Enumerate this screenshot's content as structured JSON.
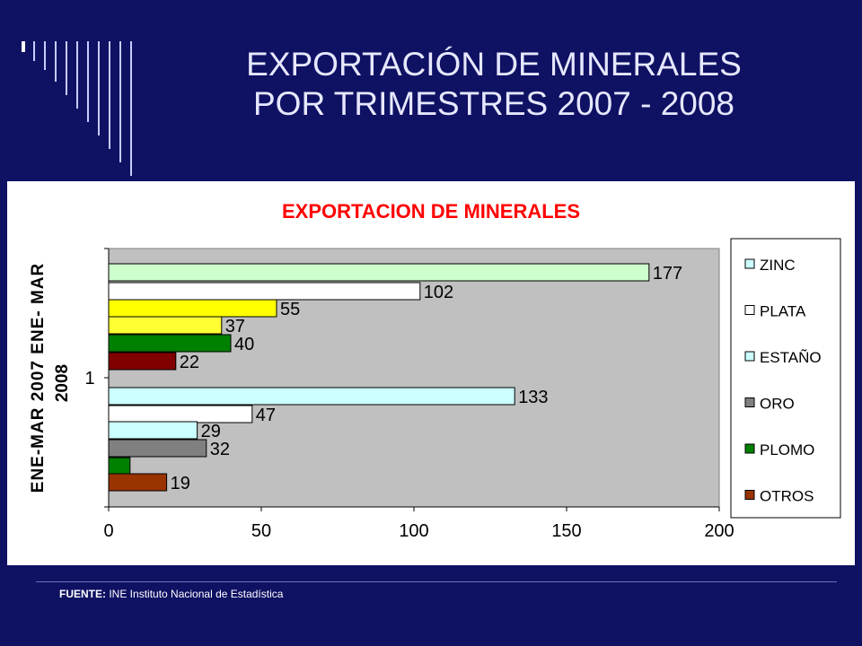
{
  "slide": {
    "title_line1": "EXPORTACIÓN DE MINERALES",
    "title_line2": "POR TRIMESTRES 2007 - 2008",
    "source_label": "FUENTE:",
    "source_text": "INE Instituto Nacional de Estadística"
  },
  "colors": {
    "background": "#0f1163",
    "title_text": "#e6e8ff",
    "decor_lines": "#c8ccff",
    "chart_title": "#ff0000",
    "plot_area": "#c0c0c0"
  },
  "chart_data": {
    "type": "bar",
    "orientation": "horizontal",
    "title": "EXPORTACION DE MINERALES",
    "ylabel_line1": "ENE-MAR 2007    ENE- MAR",
    "ylabel_line2": "2008",
    "category_tick": "1",
    "xlim": [
      0,
      200
    ],
    "xticks": [
      "0",
      "50",
      "100",
      "150",
      "200"
    ],
    "grid": false,
    "legend_position": "right",
    "legend": [
      {
        "name": "ZINC",
        "color": "#ccffff"
      },
      {
        "name": "PLATA",
        "color": "#ffffff"
      },
      {
        "name": "ESTAÑO",
        "color": "#ccffff"
      },
      {
        "name": "ORO",
        "color": "#808080"
      },
      {
        "name": "PLOMO",
        "color": "#008000"
      },
      {
        "name": "OTROS",
        "color": "#993300"
      }
    ],
    "bars": [
      {
        "group": "ENE-MAR 2008",
        "value": 177,
        "label": "177",
        "color": "#ccffcc"
      },
      {
        "group": "ENE-MAR 2008",
        "value": 102,
        "label": "102",
        "color": "#ffffff"
      },
      {
        "group": "ENE-MAR 2008",
        "value": 55,
        "label": "55",
        "color": "#ffff00"
      },
      {
        "group": "ENE-MAR 2008",
        "value": 37,
        "label": "37",
        "color": "#ffff33"
      },
      {
        "group": "ENE-MAR 2008",
        "value": 40,
        "label": "40",
        "color": "#008000"
      },
      {
        "group": "ENE-MAR 2008",
        "value": 22,
        "label": "22",
        "color": "#800000"
      },
      {
        "group": "ENE-MAR 2007",
        "value": 133,
        "label": "133",
        "color": "#ccffff"
      },
      {
        "group": "ENE-MAR 2007",
        "value": 47,
        "label": "47",
        "color": "#ffffff"
      },
      {
        "group": "ENE-MAR 2007",
        "value": 29,
        "label": "29",
        "color": "#ccffff"
      },
      {
        "group": "ENE-MAR 2007",
        "value": 32,
        "label": "32",
        "color": "#808080"
      },
      {
        "group": "ENE-MAR 2007",
        "value": 7,
        "label": "",
        "color": "#008000"
      },
      {
        "group": "ENE-MAR 2007",
        "value": 19,
        "label": "19",
        "color": "#993300"
      }
    ]
  }
}
